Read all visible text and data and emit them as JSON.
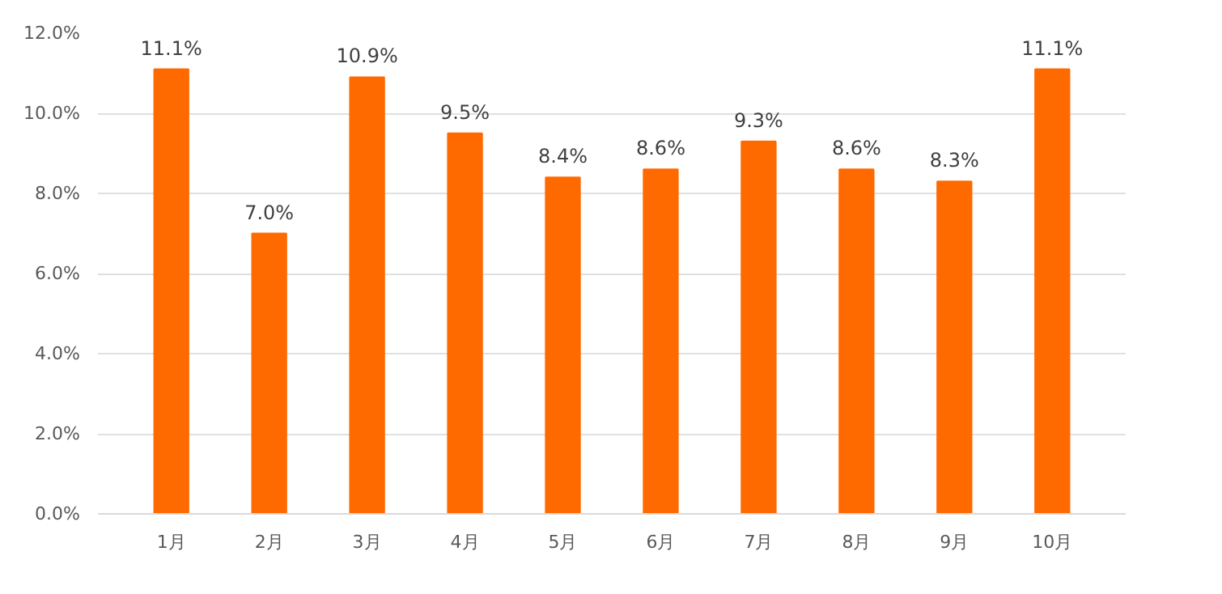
{
  "chart_data": {
    "type": "bar",
    "categories": [
      "1月",
      "2月",
      "3月",
      "4月",
      "5月",
      "6月",
      "7月",
      "8月",
      "9月",
      "10月"
    ],
    "values": [
      11.1,
      7.0,
      10.9,
      9.5,
      8.4,
      8.6,
      9.3,
      8.6,
      8.3,
      11.1
    ],
    "value_labels": [
      "11.1%",
      "7.0%",
      "10.9%",
      "9.5%",
      "8.4%",
      "8.6%",
      "9.3%",
      "8.6%",
      "8.3%",
      "11.1%"
    ],
    "color": "#ff6a00",
    "ylim": [
      0,
      12
    ],
    "yticks": [
      {
        "value": 0,
        "label": "0.0%"
      },
      {
        "value": 2,
        "label": "2.0%"
      },
      {
        "value": 4,
        "label": "4.0%"
      },
      {
        "value": 6,
        "label": "6.0%"
      },
      {
        "value": 8,
        "label": "8.0%"
      },
      {
        "value": 10,
        "label": "10.0%"
      },
      {
        "value": 12,
        "label": "12.0%"
      }
    ],
    "grid": "y"
  }
}
